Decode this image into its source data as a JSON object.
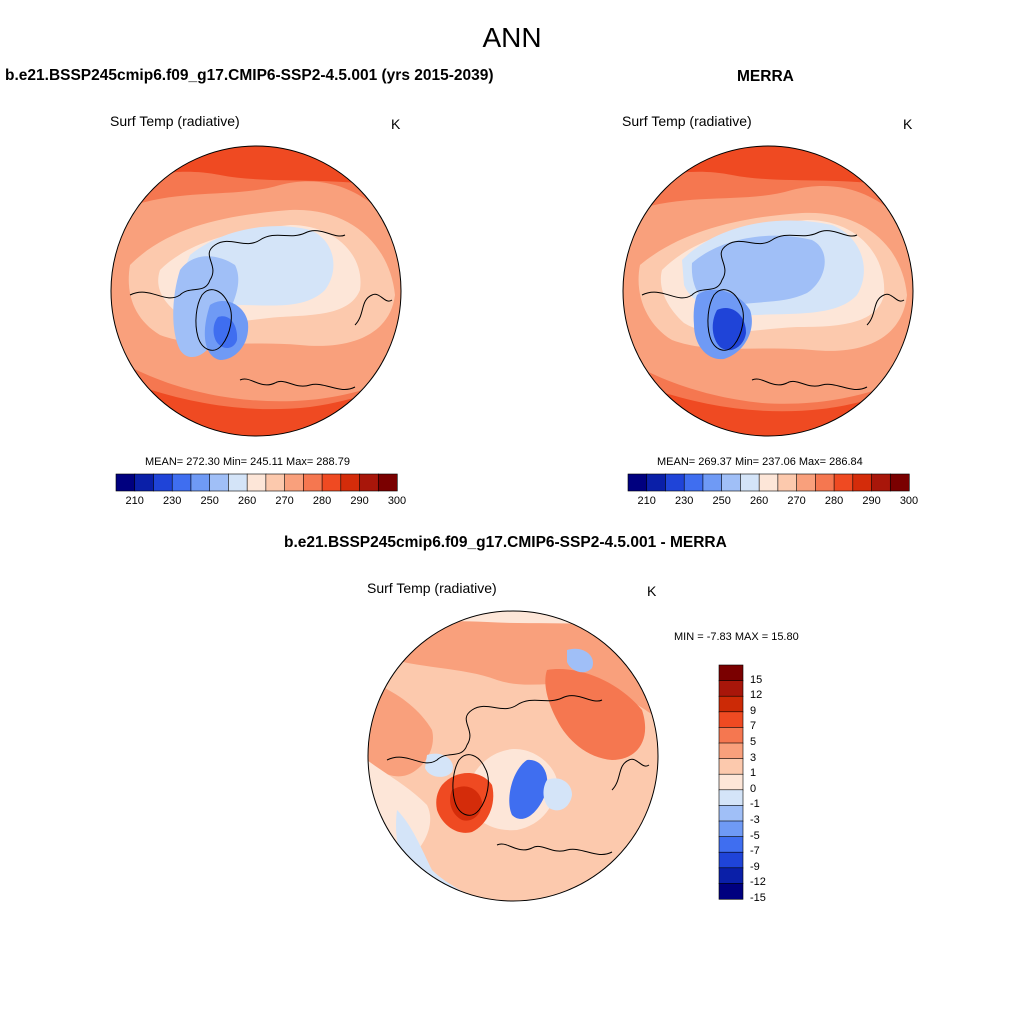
{
  "figure": {
    "title": "ANN",
    "variable_label": "Surf Temp (radiative)",
    "units": "K"
  },
  "panels": [
    {
      "id": "model",
      "title": "b.e21.BSSP245cmip6.f09_g17.CMIP6-SSP2-4.5.001 (yrs 2015-2039)",
      "variable_label": "Surf Temp (radiative)",
      "units": "K",
      "stats_text": "MEAN= 272.30  Min= 245.11  Max= 288.79"
    },
    {
      "id": "obs",
      "title": "MERRA",
      "variable_label": "Surf Temp (radiative)",
      "units": "K",
      "stats_text": "MEAN= 269.37  Min= 237.06  Max= 286.84"
    },
    {
      "id": "diff",
      "title": "b.e21.BSSP245cmip6.f09_g17.CMIP6-SSP2-4.5.001 - MERRA",
      "variable_label": "Surf Temp (radiative)",
      "units": "K",
      "stats_text": "MIN =  -7.83 MAX =  15.80"
    }
  ],
  "colorbars": {
    "abs": {
      "colors": [
        "#00007f",
        "#0a1fa8",
        "#1f44d8",
        "#3f6ef0",
        "#6f9af5",
        "#a0bff7",
        "#d4e4f8",
        "#fde6d8",
        "#fcc9ad",
        "#f9a07c",
        "#f57750",
        "#ef4a22",
        "#d42c0a",
        "#a8160a",
        "#7a0000"
      ],
      "labels": [
        "210",
        "230",
        "250",
        "260",
        "270",
        "280",
        "290",
        "300"
      ]
    },
    "diff": {
      "colors": [
        "#7a0000",
        "#a8160a",
        "#cc2a06",
        "#ef4a22",
        "#f57750",
        "#f9a07c",
        "#fcc9ad",
        "#fde6d8",
        "#d4e4f8",
        "#a0bff7",
        "#6f9af5",
        "#3f6ef0",
        "#1f44d8",
        "#0a1fa8",
        "#00007f"
      ],
      "labels": [
        "15",
        "12",
        "9",
        "7",
        "5",
        "3",
        "1",
        "0",
        "-1",
        "-3",
        "-5",
        "-7",
        "-9",
        "-12",
        "-15"
      ]
    }
  }
}
